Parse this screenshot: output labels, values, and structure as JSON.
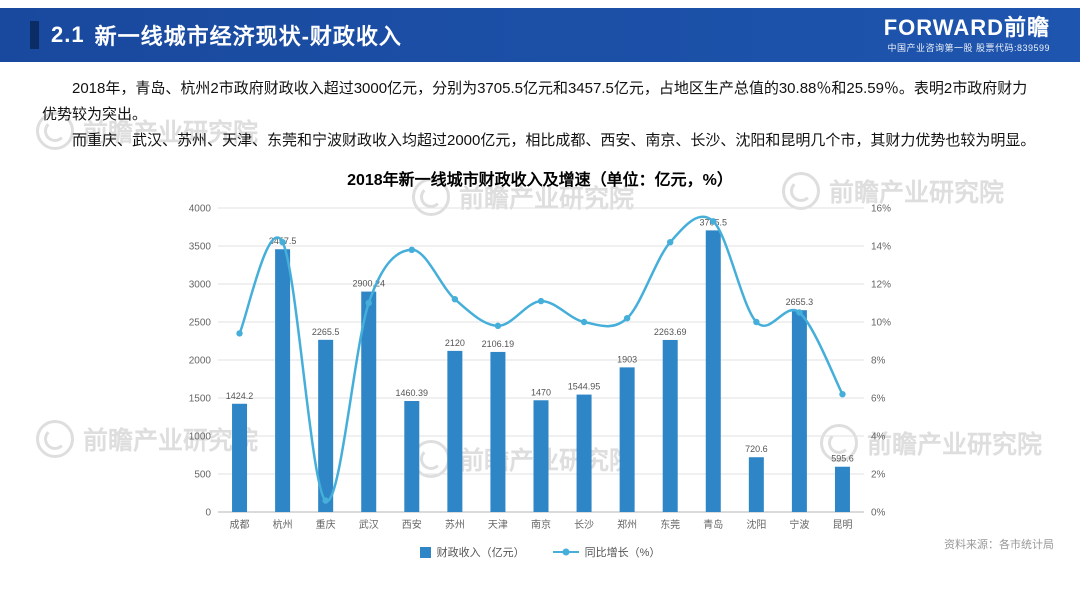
{
  "header": {
    "section_number": "2.1",
    "title": "新一线城市经济现状-财政收入",
    "brand": {
      "logo": "FORWARD前瞻",
      "tagline": "中国产业咨询第一股  股票代码:839599"
    }
  },
  "body": {
    "paragraphs": [
      "2018年，青岛、杭州2市政府财政收入超过3000亿元，分别为3705.5亿元和3457.5亿元，占地区生产总值的30.88％和25.59％。表明2市政府财力优势较为突出。",
      "而重庆、武汉、苏州、天津、东莞和宁波财政收入均超过2000亿元，相比成都、西安、南京、长沙、沈阳和昆明几个市，其财力优势也较为明显。"
    ]
  },
  "chart_data": {
    "type": "bar",
    "subtype": "bar+line combo, dual axis",
    "title": "2018年新一线城市财政收入及增速（单位：亿元，%）",
    "categories": [
      "成都",
      "杭州",
      "重庆",
      "武汉",
      "西安",
      "苏州",
      "天津",
      "南京",
      "长沙",
      "郑州",
      "东莞",
      "青岛",
      "沈阳",
      "宁波",
      "昆明"
    ],
    "series": [
      {
        "name": "财政收入（亿元）",
        "type": "bar",
        "axis": "left",
        "color": "#2E86C6",
        "values": [
          1424.2,
          3457.5,
          2265.5,
          2900.24,
          1460.39,
          2120,
          2106.19,
          1470,
          1544.95,
          1903,
          2263.69,
          3705.5,
          720.6,
          2655.3,
          595.6
        ]
      },
      {
        "name": "同比增长（%）",
        "type": "line",
        "axis": "right",
        "color": "#45AFDA",
        "values": [
          9.4,
          14.2,
          0.6,
          11.0,
          13.8,
          11.2,
          9.8,
          11.1,
          10.0,
          10.2,
          14.2,
          15.3,
          10.0,
          10.5,
          6.2
        ]
      }
    ],
    "left_axis": {
      "min": 0,
      "max": 4000,
      "step": 500
    },
    "right_axis": {
      "min": 0,
      "max": 16,
      "step": 2,
      "suffix": "%"
    },
    "grid": true,
    "legend_position": "bottom"
  },
  "footer": {
    "source": "资料来源：各市统计局"
  },
  "watermark": {
    "text": "前瞻产业研究院"
  }
}
